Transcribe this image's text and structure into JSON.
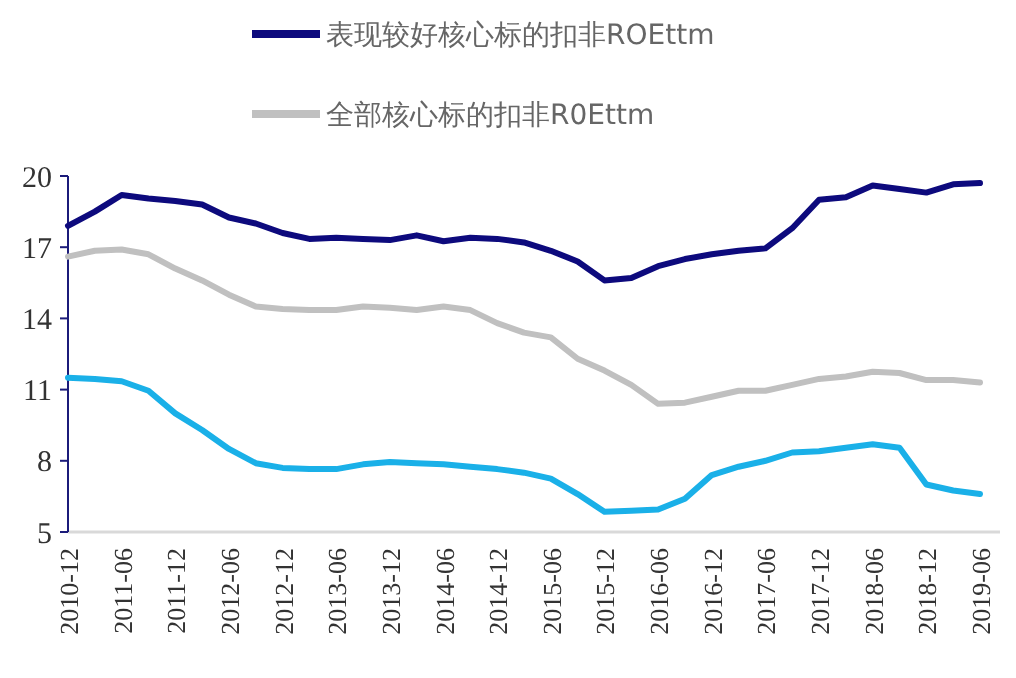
{
  "chart_data": {
    "type": "line",
    "categories": [
      "2010-12",
      null,
      "2011-06",
      null,
      "2011-12",
      null,
      "2012-06",
      null,
      "2012-12",
      null,
      "2013-06",
      null,
      "2013-12",
      null,
      "2014-06",
      null,
      "2014-12",
      null,
      "2015-06",
      null,
      "2015-12",
      null,
      "2016-06",
      null,
      "2016-12",
      null,
      "2017-06",
      null,
      "2017-12",
      null,
      "2018-06",
      null,
      "2018-12",
      null,
      "2019-06"
    ],
    "series": [
      {
        "name": "表现较好核心标的扣非ROEttm",
        "color": "#0d0a7d",
        "values": [
          17.9,
          18.5,
          19.2,
          19.05,
          18.95,
          18.8,
          18.25,
          18.0,
          17.6,
          17.35,
          17.4,
          17.35,
          17.3,
          17.5,
          17.25,
          17.4,
          17.35,
          17.2,
          16.85,
          16.4,
          15.6,
          15.7,
          16.2,
          16.5,
          16.7,
          16.85,
          16.95,
          17.8,
          19.0,
          19.1,
          19.6,
          19.45,
          19.3,
          19.65,
          19.7
        ]
      },
      {
        "name": "全部核心标的扣非R0Ettm",
        "color": "#c0c0c0",
        "values": [
          16.6,
          16.85,
          16.9,
          16.7,
          16.1,
          15.6,
          15.0,
          14.5,
          14.4,
          14.35,
          14.35,
          14.5,
          14.45,
          14.35,
          14.5,
          14.35,
          13.8,
          13.4,
          13.2,
          12.3,
          11.8,
          11.2,
          10.4,
          10.45,
          10.7,
          10.95,
          10.95,
          11.2,
          11.45,
          11.55,
          11.75,
          11.7,
          11.4,
          11.4,
          11.3
        ]
      },
      {
        "color": "#1ab0e8",
        "values": [
          11.5,
          11.45,
          11.35,
          10.95,
          10.0,
          9.3,
          8.5,
          7.9,
          7.7,
          7.65,
          7.65,
          7.85,
          7.95,
          7.9,
          7.85,
          7.75,
          7.65,
          7.5,
          7.25,
          6.6,
          5.85,
          5.9,
          5.95,
          6.4,
          7.4,
          7.75,
          8.0,
          8.35,
          8.4,
          8.55,
          8.7,
          8.55,
          7.0,
          6.75,
          6.6
        ]
      }
    ],
    "ylim": [
      5,
      20
    ],
    "yticks": [
      5,
      8,
      11,
      14,
      17,
      20
    ],
    "grid": false,
    "legend": "top",
    "marker": "none",
    "line_style": "solid"
  }
}
